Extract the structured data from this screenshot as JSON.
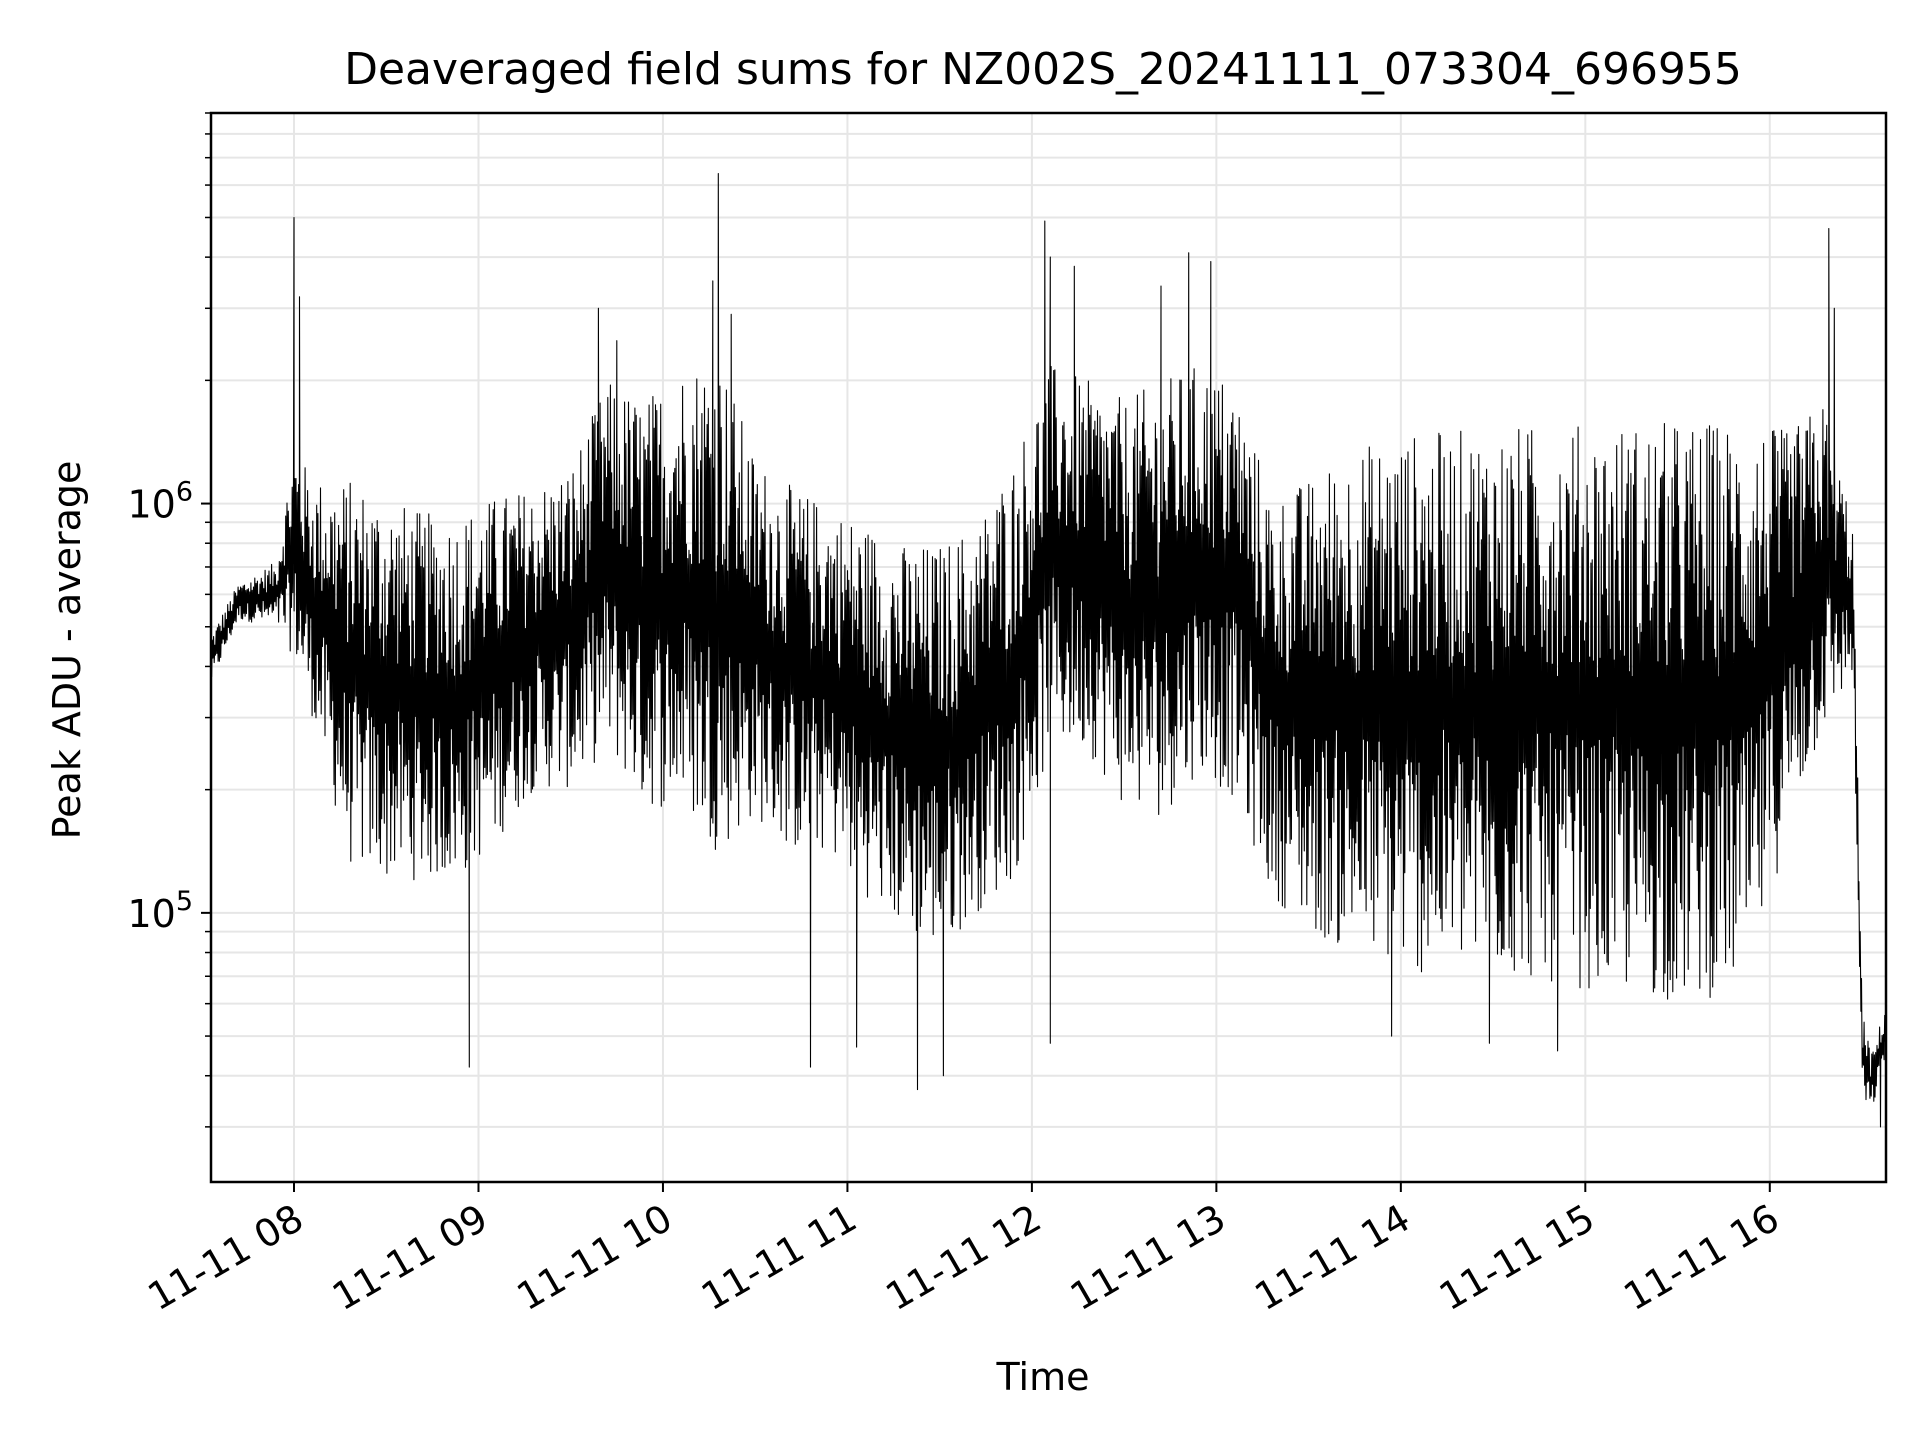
{
  "chart_data": {
    "type": "line",
    "title": "Deaveraged field sums for NZ002S_20241111_073304_696955",
    "xlabel": "Time",
    "ylabel": "Peak ADU - average",
    "y_scale": "log",
    "ylim": [
      22000,
      9000000
    ],
    "xlim": [
      "11-11 07:33",
      "11-11 16:38"
    ],
    "x_tick_labels": [
      "11-11 08",
      "11-11 09",
      "11-11 10",
      "11-11 11",
      "11-11 12",
      "11-11 13",
      "11-11 14",
      "11-11 15",
      "11-11 16"
    ],
    "x_tick_hours": [
      8,
      9,
      10,
      11,
      12,
      13,
      14,
      15,
      16
    ],
    "y_major_ticks": [
      {
        "value": 100000,
        "base": "10",
        "exp": "5"
      },
      {
        "value": 1000000,
        "base": "10",
        "exp": "6"
      }
    ],
    "grid": true,
    "line_color": "#000000",
    "grid_color": "#e6e6e6",
    "series_envelope": {
      "hours": [
        7.55,
        7.7,
        7.9,
        8.0,
        8.1,
        8.3,
        8.5,
        8.7,
        8.9,
        9.1,
        9.3,
        9.5,
        9.7,
        9.9,
        10.1,
        10.3,
        10.5,
        10.7,
        10.9,
        11.1,
        11.3,
        11.5,
        11.7,
        11.9,
        12.1,
        12.3,
        12.5,
        12.7,
        12.9,
        13.1,
        13.3,
        13.5,
        13.7,
        13.9,
        14.1,
        14.3,
        14.5,
        14.7,
        14.9,
        15.1,
        15.3,
        15.5,
        15.7,
        15.9,
        16.1,
        16.3,
        16.45,
        16.5,
        16.55,
        16.63
      ],
      "low": [
        360000,
        520000,
        500000,
        420000,
        300000,
        130000,
        120000,
        120000,
        120000,
        150000,
        200000,
        200000,
        250000,
        180000,
        180000,
        140000,
        170000,
        140000,
        140000,
        110000,
        90000,
        80000,
        100000,
        120000,
        250000,
        250000,
        180000,
        170000,
        220000,
        190000,
        110000,
        90000,
        80000,
        75000,
        70000,
        72000,
        70000,
        68000,
        66000,
        64000,
        62000,
        60000,
        62000,
        70000,
        160000,
        280000,
        380000,
        35000,
        32000,
        45000
      ],
      "high": [
        480000,
        640000,
        720000,
        1400000,
        1150000,
        1150000,
        1050000,
        950000,
        950000,
        1050000,
        1100000,
        1250000,
        2000000,
        1800000,
        2200000,
        2400000,
        1300000,
        1100000,
        1000000,
        900000,
        800000,
        800000,
        900000,
        1300000,
        2200000,
        2000000,
        1800000,
        2000000,
        2200000,
        2000000,
        1050000,
        1150000,
        1350000,
        1450000,
        1500000,
        1520000,
        1550000,
        1560000,
        1570000,
        1580000,
        1590000,
        1600000,
        1600000,
        1600000,
        1500000,
        1800000,
        900000,
        60000,
        45000,
        60000
      ]
    },
    "spikes_high": [
      {
        "hour": 8.0,
        "value": 5000000
      },
      {
        "hour": 8.03,
        "value": 3200000
      },
      {
        "hour": 9.65,
        "value": 3000000
      },
      {
        "hour": 9.75,
        "value": 2500000
      },
      {
        "hour": 10.27,
        "value": 3500000
      },
      {
        "hour": 10.3,
        "value": 6400000
      },
      {
        "hour": 10.37,
        "value": 2900000
      },
      {
        "hour": 12.07,
        "value": 4900000
      },
      {
        "hour": 12.1,
        "value": 4000000
      },
      {
        "hour": 12.23,
        "value": 3800000
      },
      {
        "hour": 12.7,
        "value": 3400000
      },
      {
        "hour": 12.85,
        "value": 4100000
      },
      {
        "hour": 12.97,
        "value": 3900000
      },
      {
        "hour": 16.32,
        "value": 4700000
      },
      {
        "hour": 16.35,
        "value": 3000000
      }
    ],
    "spikes_low": [
      {
        "hour": 8.95,
        "value": 42000
      },
      {
        "hour": 10.8,
        "value": 42000
      },
      {
        "hour": 11.05,
        "value": 47000
      },
      {
        "hour": 11.38,
        "value": 37000
      },
      {
        "hour": 11.52,
        "value": 40000
      },
      {
        "hour": 12.1,
        "value": 48000
      },
      {
        "hour": 13.95,
        "value": 50000
      },
      {
        "hour": 14.48,
        "value": 48000
      },
      {
        "hour": 14.85,
        "value": 46000
      },
      {
        "hour": 16.6,
        "value": 30000
      }
    ]
  }
}
